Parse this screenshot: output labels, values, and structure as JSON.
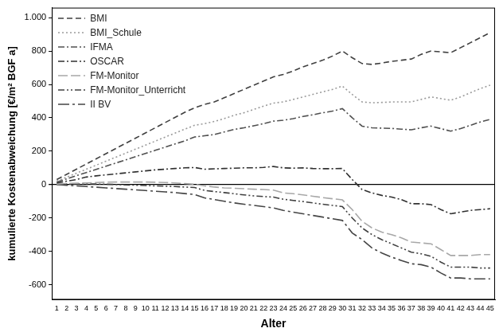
{
  "chart_data": {
    "type": "line",
    "x_label": "Alter",
    "y_label": "kumulierte Kostenabweichung [€/m² BGF a]",
    "categories": [
      1,
      2,
      3,
      4,
      5,
      6,
      7,
      8,
      9,
      10,
      11,
      12,
      13,
      14,
      15,
      16,
      17,
      18,
      19,
      20,
      21,
      22,
      23,
      24,
      25,
      26,
      27,
      28,
      29,
      30,
      31,
      32,
      33,
      34,
      35,
      36,
      37,
      38,
      39,
      40,
      41,
      42,
      43,
      44,
      45
    ],
    "ylim": [
      -690,
      1060
    ],
    "yticks": [
      -600,
      -400,
      -200,
      0,
      200,
      400,
      600,
      800,
      {
        "value": 1000,
        "label": "1.000"
      }
    ],
    "grid": false,
    "legend": "upper left",
    "series": [
      {
        "name": "BMI",
        "color": "#404040",
        "line_style": "dashed",
        "values": [
          30,
          61,
          92,
          123,
          154,
          185,
          216,
          247,
          278,
          309,
          340,
          371,
          402,
          433,
          460,
          480,
          495,
          520,
          545,
          570,
          595,
          620,
          645,
          660,
          680,
          705,
          725,
          745,
          770,
          800,
          760,
          725,
          720,
          728,
          738,
          745,
          752,
          780,
          800,
          795,
          790,
          820,
          850,
          880,
          910
        ]
      },
      {
        "name": "BMI_Schule",
        "color": "#9a9a9a",
        "line_style": "dotted",
        "values": [
          20,
          44,
          68,
          92,
          116,
          140,
          164,
          188,
          212,
          236,
          260,
          284,
          308,
          332,
          355,
          365,
          378,
          395,
          415,
          430,
          450,
          470,
          488,
          495,
          510,
          525,
          540,
          555,
          570,
          590,
          540,
          495,
          490,
          492,
          495,
          495,
          495,
          510,
          525,
          515,
          505,
          525,
          550,
          575,
          595
        ]
      },
      {
        "name": "IFMA",
        "color": "#505050",
        "line_style": "dashdot",
        "values": [
          15,
          34,
          53,
          72,
          91,
          110,
          129,
          148,
          167,
          186,
          205,
          224,
          243,
          262,
          285,
          292,
          300,
          315,
          330,
          340,
          352,
          365,
          380,
          385,
          395,
          408,
          418,
          430,
          440,
          455,
          400,
          350,
          340,
          338,
          336,
          332,
          328,
          340,
          350,
          335,
          320,
          335,
          355,
          375,
          390
        ]
      },
      {
        "name": "OSCAR",
        "color": "#303030",
        "line_style": "dashdot",
        "values": [
          10,
          20,
          30,
          45,
          52,
          58,
          64,
          70,
          76,
          82,
          88,
          92,
          96,
          100,
          102,
          92,
          94,
          96,
          98,
          100,
          100,
          103,
          108,
          100,
          98,
          100,
          96,
          95,
          95,
          96,
          30,
          -30,
          -50,
          -65,
          -75,
          -90,
          -115,
          -115,
          -120,
          -150,
          -175,
          -165,
          -155,
          -150,
          -145
        ]
      },
      {
        "name": "FM-Monitor",
        "color": "#a8a8a8",
        "line_style": "longdash",
        "values": [
          3,
          6,
          8,
          10,
          12,
          14,
          15,
          15,
          15,
          15,
          14,
          12,
          10,
          6,
          2,
          -8,
          -15,
          -20,
          -22,
          -25,
          -28,
          -30,
          -33,
          -50,
          -55,
          -62,
          -70,
          -78,
          -85,
          -92,
          -150,
          -220,
          -260,
          -285,
          -300,
          -320,
          -345,
          -350,
          -355,
          -390,
          -425,
          -425,
          -425,
          -420,
          -420
        ]
      },
      {
        "name": "FM-Monitor_Unterricht",
        "color": "#404040",
        "line_style": "dashdotdot",
        "values": [
          2,
          3,
          4,
          4,
          3,
          2,
          0,
          -2,
          -4,
          -6,
          -8,
          -10,
          -12,
          -15,
          -18,
          -35,
          -42,
          -48,
          -55,
          -62,
          -68,
          -72,
          -75,
          -88,
          -95,
          -102,
          -110,
          -118,
          -125,
          -132,
          -200,
          -260,
          -300,
          -330,
          -355,
          -380,
          -405,
          -415,
          -430,
          -465,
          -495,
          -495,
          -495,
          -500,
          -500
        ]
      },
      {
        "name": "II BV",
        "color": "#454545",
        "line_style": "longdashdot",
        "values": [
          0,
          -4,
          -8,
          -12,
          -16,
          -20,
          -24,
          -28,
          -32,
          -36,
          -40,
          -44,
          -48,
          -54,
          -60,
          -80,
          -90,
          -100,
          -110,
          -118,
          -125,
          -132,
          -140,
          -155,
          -165,
          -175,
          -185,
          -195,
          -205,
          -215,
          -290,
          -330,
          -380,
          -410,
          -435,
          -455,
          -475,
          -480,
          -495,
          -530,
          -560,
          -560,
          -565,
          -565,
          -565
        ]
      }
    ]
  }
}
